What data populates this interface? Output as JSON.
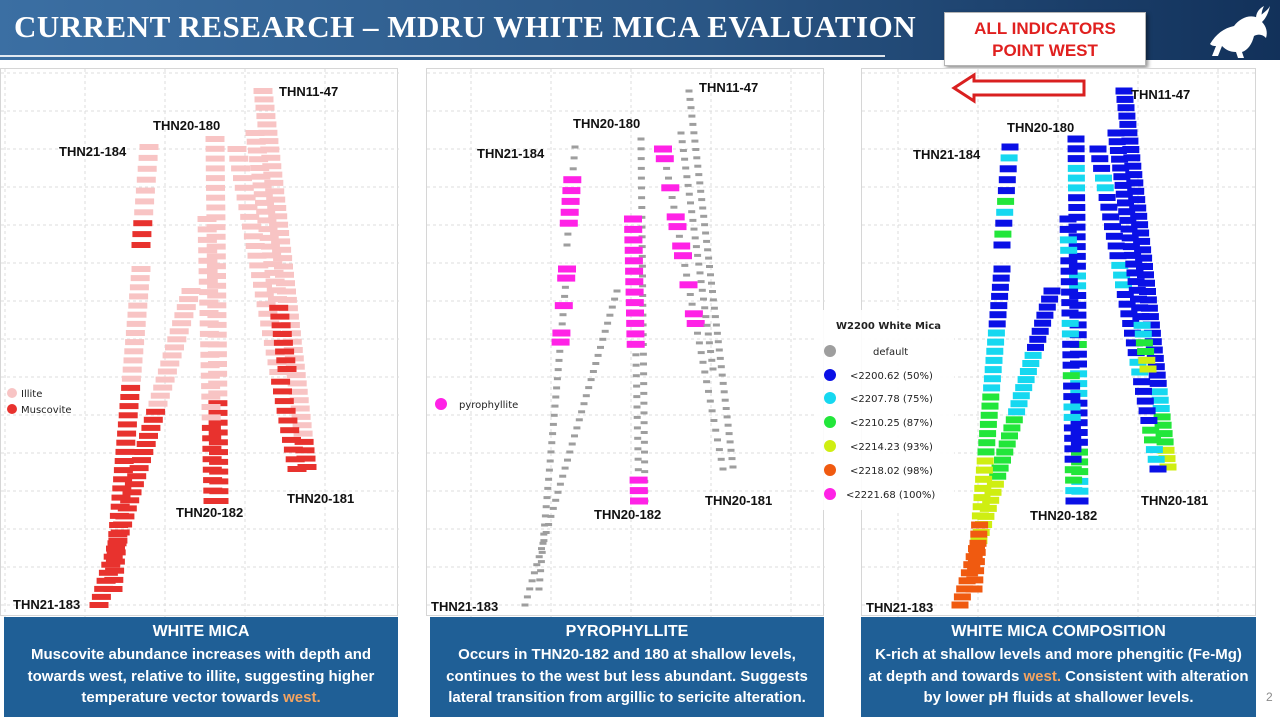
{
  "header": {
    "title": "CURRENT RESEARCH – MDRU WHITE MICA EVALUATION",
    "callout_line1": "ALL INDICATORS",
    "callout_line2": "POINT WEST",
    "arrow_direction": "west",
    "logo_icon": "bull-logo-icon"
  },
  "colors": {
    "header_bg": "#2a5685",
    "caption_bg": "#1f5f96",
    "callout_text": "#e0201f",
    "illite": "#f8c4c4",
    "muscovite": "#e8322e",
    "default": "#9e9e9e",
    "pyrophyllite": "#ff22e6",
    "w1": "#0a10e6",
    "w2": "#16d8f0",
    "w3": "#22e63a",
    "w4": "#cfee12",
    "w5": "#f05a10",
    "w6": "#ff22e6"
  },
  "panels": [
    {
      "id": "white-mica",
      "drillholes": [
        "THN11-47",
        "THN20-180",
        "THN21-184",
        "THN20-182",
        "THN20-181",
        "THN21-183"
      ],
      "legend": [
        {
          "label": "Illite",
          "color": "#f8c4c4"
        },
        {
          "label": "Muscovite",
          "color": "#e8322e"
        }
      ],
      "caption_title": "WHITE MICA",
      "caption_text": "Muscovite abundance increases with depth and towards west, relative to illite, suggesting higher temperature vector towards",
      "caption_highlight": "west."
    },
    {
      "id": "pyrophyllite",
      "drillholes": [
        "THN11-47",
        "THN20-180",
        "THN21-184",
        "THN20-182",
        "THN20-181",
        "THN21-183"
      ],
      "legend": [
        {
          "label": "pyrophyllite",
          "color": "#ff22e6"
        }
      ],
      "caption_title": "PYROPHYLLITE",
      "caption_text": "Occurs in THN20-182 and 180 at shallow levels, continues to the west but less abundant. Suggests lateral transition from argillic to sericite alteration."
    },
    {
      "id": "white-mica-composition",
      "drillholes": [
        "THN11-47",
        "THN20-180",
        "THN21-184",
        "THN20-182",
        "THN20-181",
        "THN21-183"
      ],
      "legend_title": "W2200 White Mica",
      "legend": [
        {
          "label": "default",
          "color": "#9e9e9e"
        },
        {
          "label": "<2200.62 (50%)",
          "color": "#0a10e6"
        },
        {
          "label": "<2207.78 (75%)",
          "color": "#16d8f0"
        },
        {
          "label": "<2210.25 (87%)",
          "color": "#22e63a"
        },
        {
          "label": "<2214.23 (93%)",
          "color": "#cfee12"
        },
        {
          "label": "<2218.02 (98%)",
          "color": "#f05a10"
        },
        {
          "label": "<2221.68 (100%)",
          "color": "#ff22e6"
        }
      ],
      "caption_title": "WHITE MICA COMPOSITION",
      "caption_text_a": "K-rich at shallow levels and more phengitic (Fe-Mg) at depth and towards",
      "caption_highlight": "west.",
      "caption_text_b": "Consistent with alteration by lower pH fluids at shallower levels."
    }
  ],
  "page_number": "2"
}
